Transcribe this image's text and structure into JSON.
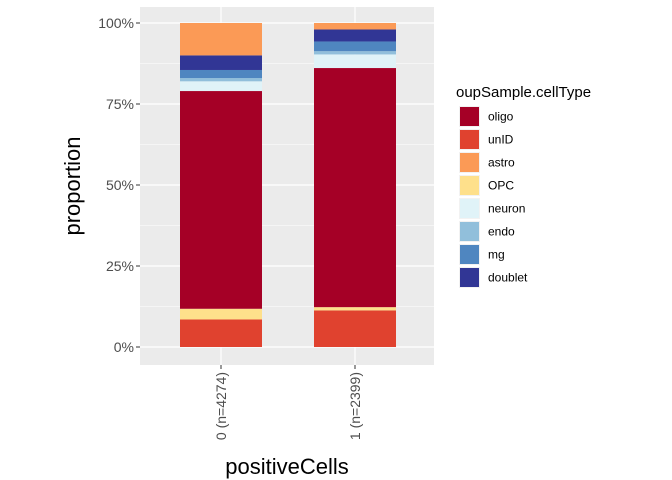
{
  "chart_data": {
    "type": "bar",
    "stacked": true,
    "xlabel": "positiveCells",
    "ylabel": "proportion",
    "ylim": [
      0,
      1
    ],
    "y_ticks": [
      "0%",
      "25%",
      "50%",
      "75%",
      "100%"
    ],
    "grid": true,
    "legend_position": "right",
    "legend_title": "oupSample.cellType",
    "categories": [
      "0 (n=4274)",
      "1 (n=2399)"
    ],
    "series": [
      {
        "name": "oligo",
        "color": "#a50026",
        "values": [
          0.672,
          0.738
        ]
      },
      {
        "name": "unID",
        "color": "#e0422f",
        "values": [
          0.085,
          0.113
        ]
      },
      {
        "name": "astro",
        "color": "#fb9a56",
        "values": [
          0.1,
          0.02
        ]
      },
      {
        "name": "OPC",
        "color": "#fee08b",
        "values": [
          0.033,
          0.01
        ]
      },
      {
        "name": "neuron",
        "color": "#e0f3f8",
        "values": [
          0.03,
          0.042
        ]
      },
      {
        "name": "endo",
        "color": "#91bfdb",
        "values": [
          0.01,
          0.01
        ]
      },
      {
        "name": "mg",
        "color": "#4f86c0",
        "values": [
          0.025,
          0.03
        ]
      },
      {
        "name": "doublet",
        "color": "#313695",
        "values": [
          0.045,
          0.037
        ]
      }
    ],
    "stack_order_bottom_to_top": [
      "unID",
      "OPC",
      "oligo",
      "neuron",
      "endo",
      "mg",
      "doublet",
      "astro"
    ]
  }
}
